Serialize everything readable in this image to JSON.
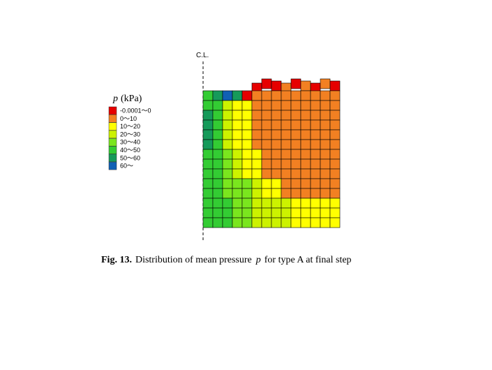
{
  "figure": {
    "centerline_label": "C.L.",
    "legend": {
      "symbol": "p",
      "unit": "(kPa)",
      "entries": [
        {
          "label": "-0.0001〜0",
          "color": "#e60000"
        },
        {
          "label": "0〜10",
          "color": "#f28022"
        },
        {
          "label": "10〜20",
          "color": "#ffff00"
        },
        {
          "label": "20〜30",
          "color": "#ccf200"
        },
        {
          "label": "30〜40",
          "color": "#7ae61e"
        },
        {
          "label": "40〜50",
          "color": "#33cc33"
        },
        {
          "label": "50〜60",
          "color": "#169a5a"
        },
        {
          "label": "60〜",
          "color": "#1060b4"
        }
      ]
    },
    "caption": {
      "number": "Fig. 13.",
      "text_before": "Distribution  of mean pressure",
      "symbol": "p",
      "text_after": "for type A at final  step"
    }
  }
}
